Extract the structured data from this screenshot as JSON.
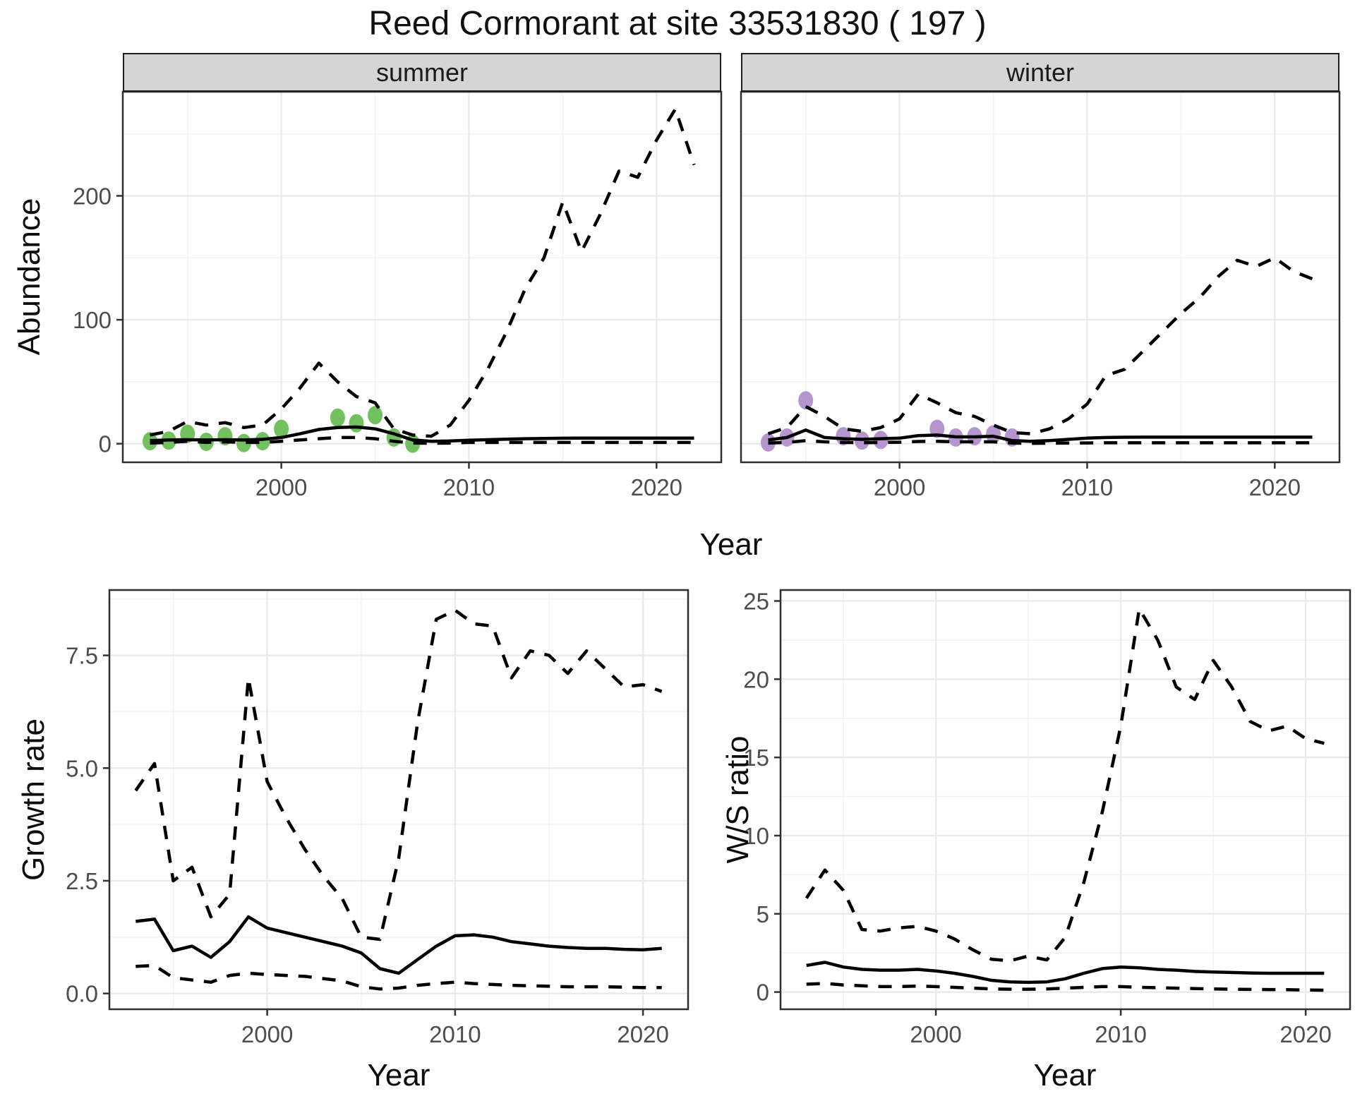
{
  "title": "Reed Cormorant at site 33531830 ( 197 )",
  "facets": {
    "summer": "summer",
    "winter": "winter"
  },
  "axis_titles": {
    "abundance": "Abundance",
    "year": "Year",
    "growth_rate": "Growth rate",
    "ws_ratio": "W/S ratio"
  },
  "colors": {
    "summer_points": "#72C05E",
    "winter_points": "#B694CD",
    "line": "#000000",
    "grid_major": "#E9E9E9",
    "grid_minor": "#F3F3F3",
    "panel_border": "#2F2F2F",
    "tick_mark": "#333333",
    "tick_text": "#4D4D4D",
    "strip_bg": "#D5D5D5"
  },
  "chart_data": [
    {
      "id": "summer-abundance",
      "type": "line+scatter",
      "facet": "summer",
      "xlabel": "Year",
      "ylabel": "Abundance",
      "xlim": [
        1991.55,
        2023.45
      ],
      "ylim": [
        -15,
        284
      ],
      "x_ticks": [
        2000,
        2010,
        2020
      ],
      "x_tick_labels": [
        "2000",
        "2010",
        "2020"
      ],
      "y_ticks": [
        0,
        100,
        200
      ],
      "y_tick_labels": [
        "0",
        "100",
        "200"
      ],
      "x": [
        1993,
        1994,
        1995,
        1996,
        1997,
        1998,
        1999,
        2000,
        2001,
        2002,
        2003,
        2004,
        2005,
        2006,
        2007,
        2008,
        2009,
        2010,
        2011,
        2012,
        2013,
        2014,
        2015,
        2016,
        2017,
        2018,
        2019,
        2020,
        2021,
        2022
      ],
      "series": [
        {
          "name": "lower_ci",
          "style": "dashed",
          "values": [
            0.5,
            1,
            2,
            1,
            1.5,
            1,
            1,
            2,
            3,
            4,
            5,
            5,
            4,
            2,
            0.5,
            0.3,
            0.5,
            1,
            1,
            1,
            1,
            1,
            1,
            1,
            1,
            1,
            1,
            1,
            1,
            1
          ]
        },
        {
          "name": "upper_ci",
          "style": "dashed",
          "values": [
            7,
            10,
            18,
            15,
            17,
            13,
            15,
            28,
            45,
            65,
            50,
            38,
            33,
            12,
            7,
            6,
            15,
            35,
            60,
            90,
            125,
            150,
            195,
            155,
            185,
            220,
            215,
            245,
            270,
            225
          ]
        },
        {
          "name": "mean_fit",
          "style": "solid",
          "values": [
            2.5,
            3,
            3.2,
            3,
            3.2,
            3,
            3.5,
            5,
            8,
            11.5,
            13,
            13.5,
            12,
            8,
            3,
            2,
            2.2,
            2.8,
            3.2,
            3.6,
            4,
            4.2,
            4.4,
            4.5,
            4.5,
            4.5,
            4.5,
            4.5,
            4.5,
            4.5
          ]
        }
      ],
      "points": {
        "name": "observed-counts-summer",
        "color": "#72C05E",
        "years": [
          1993,
          1994,
          1995,
          1996,
          1997,
          1998,
          1999,
          2000,
          2003,
          2004,
          2005,
          2006,
          2007
        ],
        "values": [
          2,
          2.5,
          8,
          1.5,
          6,
          0.5,
          2,
          12,
          21,
          16.5,
          23,
          5,
          0
        ]
      }
    },
    {
      "id": "winter-abundance",
      "type": "line+scatter",
      "facet": "winter",
      "xlabel": "Year",
      "ylabel": "Abundance",
      "xlim": [
        1991.55,
        2023.45
      ],
      "ylim": [
        -15,
        284
      ],
      "x_ticks": [
        2000,
        2010,
        2020
      ],
      "x_tick_labels": [
        "2000",
        "2010",
        "2020"
      ],
      "y_ticks": [
        0,
        100,
        200
      ],
      "y_tick_labels": [
        "0",
        "100",
        "200"
      ],
      "x": [
        1993,
        1994,
        1995,
        1996,
        1997,
        1998,
        1999,
        2000,
        2001,
        2002,
        2003,
        2004,
        2005,
        2006,
        2007,
        2008,
        2009,
        2010,
        2011,
        2012,
        2013,
        2014,
        2015,
        2016,
        2017,
        2018,
        2019,
        2020,
        2021,
        2022
      ],
      "series": [
        {
          "name": "lower_ci",
          "style": "dashed",
          "values": [
            0.5,
            1,
            2.5,
            1.5,
            1,
            0.8,
            1,
            1.2,
            1.8,
            2,
            1.5,
            1.5,
            1.5,
            0.5,
            0.3,
            0.4,
            0.5,
            0.6,
            0.7,
            0.7,
            0.7,
            0.7,
            0.7,
            0.7,
            0.7,
            0.7,
            0.7,
            0.7,
            0.7,
            0.7
          ]
        },
        {
          "name": "upper_ci",
          "style": "dashed",
          "values": [
            8,
            13,
            30,
            22,
            12,
            10,
            13,
            20,
            40,
            33,
            25,
            22,
            15,
            9,
            8,
            12,
            20,
            32,
            55,
            60,
            75,
            90,
            105,
            118,
            135,
            148,
            143,
            150,
            139,
            133
          ]
        },
        {
          "name": "mean_fit",
          "style": "solid",
          "values": [
            3,
            5,
            11,
            5,
            4,
            3.5,
            4,
            4.5,
            6.5,
            7,
            5.5,
            5.5,
            6,
            2.5,
            2,
            2.5,
            3.5,
            4.5,
            5,
            5.2,
            5.3,
            5.3,
            5.3,
            5.3,
            5.3,
            5.3,
            5.3,
            5.3,
            5.3,
            5.3
          ]
        }
      ],
      "points": {
        "name": "observed-counts-winter",
        "color": "#B694CD",
        "years": [
          1993,
          1994,
          1995,
          1997,
          1998,
          1999,
          2002,
          2003,
          2004,
          2005,
          2006
        ],
        "values": [
          1,
          5,
          35,
          6,
          2.5,
          3,
          12,
          5,
          6,
          7.5,
          5
        ]
      }
    },
    {
      "id": "growth-rate",
      "type": "line",
      "facet": "",
      "xlabel": "Year",
      "ylabel": "Growth rate",
      "xlim": [
        1991.6,
        2022.4
      ],
      "ylim": [
        -0.35,
        8.95
      ],
      "x_ticks": [
        2000,
        2010,
        2020
      ],
      "x_tick_labels": [
        "2000",
        "2010",
        "2020"
      ],
      "y_ticks": [
        0,
        2.5,
        5,
        7.5
      ],
      "y_tick_labels": [
        "0.0",
        "2.5",
        "5.0",
        "7.5"
      ],
      "x": [
        1993,
        1994,
        1995,
        1996,
        1997,
        1998,
        1999,
        2000,
        2001,
        2002,
        2003,
        2004,
        2005,
        2006,
        2007,
        2008,
        2009,
        2010,
        2011,
        2012,
        2013,
        2014,
        2015,
        2016,
        2017,
        2018,
        2019,
        2020,
        2021
      ],
      "series": [
        {
          "name": "lower_ci",
          "style": "dashed",
          "values": [
            0.6,
            0.62,
            0.35,
            0.3,
            0.25,
            0.4,
            0.45,
            0.42,
            0.4,
            0.38,
            0.33,
            0.28,
            0.15,
            0.1,
            0.12,
            0.18,
            0.22,
            0.25,
            0.22,
            0.2,
            0.18,
            0.17,
            0.16,
            0.15,
            0.15,
            0.15,
            0.14,
            0.13,
            0.13
          ]
        },
        {
          "name": "upper_ci",
          "style": "dashed",
          "values": [
            4.5,
            5.1,
            2.5,
            2.8,
            1.7,
            2.2,
            7.0,
            4.7,
            3.9,
            3.2,
            2.6,
            2.1,
            1.25,
            1.2,
            3.0,
            6.0,
            8.3,
            8.5,
            8.2,
            8.15,
            7.0,
            7.6,
            7.5,
            7.1,
            7.6,
            7.2,
            6.8,
            6.85,
            6.7
          ]
        },
        {
          "name": "mean_fit",
          "style": "solid",
          "values": [
            1.6,
            1.65,
            0.95,
            1.05,
            0.8,
            1.15,
            1.7,
            1.45,
            1.35,
            1.25,
            1.15,
            1.05,
            0.9,
            0.55,
            0.45,
            0.75,
            1.05,
            1.28,
            1.3,
            1.25,
            1.15,
            1.1,
            1.05,
            1.02,
            1.0,
            1.0,
            0.98,
            0.97,
            1.0
          ]
        }
      ],
      "points": null
    },
    {
      "id": "ws-ratio",
      "type": "line",
      "facet": "",
      "xlabel": "Year",
      "ylabel": "W/S ratio",
      "xlim": [
        1991.6,
        2022.4
      ],
      "ylim": [
        -1.1,
        25.7
      ],
      "x_ticks": [
        2000,
        2010,
        2020
      ],
      "x_tick_labels": [
        "2000",
        "2010",
        "2020"
      ],
      "y_ticks": [
        0,
        5,
        10,
        15,
        20,
        25
      ],
      "y_tick_labels": [
        "0",
        "5",
        "10",
        "15",
        "20",
        "25"
      ],
      "x": [
        1993,
        1994,
        1995,
        1996,
        1997,
        1998,
        1999,
        2000,
        2001,
        2002,
        2003,
        2004,
        2005,
        2006,
        2007,
        2008,
        2009,
        2010,
        2011,
        2012,
        2013,
        2014,
        2015,
        2016,
        2017,
        2018,
        2019,
        2020,
        2021
      ],
      "series": [
        {
          "name": "lower_ci",
          "style": "dashed",
          "values": [
            0.5,
            0.55,
            0.45,
            0.4,
            0.35,
            0.35,
            0.38,
            0.35,
            0.3,
            0.25,
            0.2,
            0.18,
            0.18,
            0.2,
            0.25,
            0.3,
            0.35,
            0.35,
            0.3,
            0.28,
            0.25,
            0.22,
            0.2,
            0.18,
            0.17,
            0.16,
            0.15,
            0.13,
            0.12
          ]
        },
        {
          "name": "upper_ci",
          "style": "dashed",
          "values": [
            6.0,
            7.8,
            6.5,
            4.0,
            3.9,
            4.1,
            4.2,
            3.9,
            3.4,
            2.7,
            2.1,
            2.0,
            2.3,
            2.05,
            3.5,
            7.0,
            11.5,
            17,
            24.5,
            22.5,
            19.5,
            18.7,
            21.2,
            19.5,
            17.3,
            16.7,
            17.0,
            16.2,
            15.9
          ]
        },
        {
          "name": "mean_fit",
          "style": "solid",
          "values": [
            1.7,
            1.9,
            1.6,
            1.45,
            1.4,
            1.4,
            1.45,
            1.35,
            1.2,
            1.0,
            0.75,
            0.65,
            0.62,
            0.65,
            0.85,
            1.2,
            1.5,
            1.6,
            1.55,
            1.45,
            1.4,
            1.32,
            1.28,
            1.25,
            1.22,
            1.2,
            1.2,
            1.2,
            1.2
          ]
        }
      ],
      "points": null
    }
  ]
}
